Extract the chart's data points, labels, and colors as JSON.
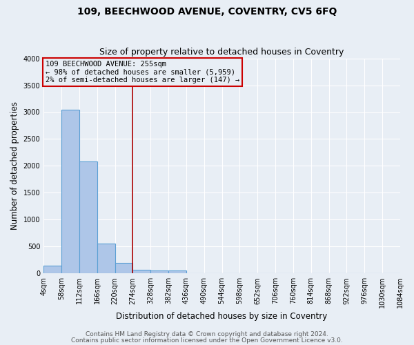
{
  "title": "109, BEECHWOOD AVENUE, COVENTRY, CV5 6FQ",
  "subtitle": "Size of property relative to detached houses in Coventry",
  "xlabel": "Distribution of detached houses by size in Coventry",
  "ylabel": "Number of detached properties",
  "bar_values": [
    150,
    3050,
    2080,
    550,
    200,
    70,
    50,
    50,
    0,
    0,
    0,
    0,
    0,
    0,
    0,
    0,
    0,
    0,
    0,
    0
  ],
  "bin_edges": [
    4,
    58,
    112,
    166,
    220,
    274,
    328,
    382,
    436,
    490,
    544,
    598,
    652,
    706,
    760,
    814,
    868,
    922,
    976,
    1030,
    1084
  ],
  "xtick_labels": [
    "4sqm",
    "58sqm",
    "112sqm",
    "166sqm",
    "220sqm",
    "274sqm",
    "328sqm",
    "382sqm",
    "436sqm",
    "490sqm",
    "544sqm",
    "598sqm",
    "652sqm",
    "706sqm",
    "760sqm",
    "814sqm",
    "868sqm",
    "922sqm",
    "976sqm",
    "1030sqm",
    "1084sqm"
  ],
  "bar_color": "#aec6e8",
  "bar_edgecolor": "#5a9fd4",
  "bar_linewidth": 0.8,
  "vline_x": 274,
  "vline_color": "#aa0000",
  "vline_linewidth": 1.2,
  "annotation_text": "109 BEECHWOOD AVENUE: 255sqm\n← 98% of detached houses are smaller (5,959)\n2% of semi-detached houses are larger (147) →",
  "annotation_box_color": "#cc0000",
  "ylim": [
    0,
    4000
  ],
  "yticks": [
    0,
    500,
    1000,
    1500,
    2000,
    2500,
    3000,
    3500,
    4000
  ],
  "bg_color": "#e8eef5",
  "footer_line1": "Contains HM Land Registry data © Crown copyright and database right 2024.",
  "footer_line2": "Contains public sector information licensed under the Open Government Licence v3.0.",
  "title_fontsize": 10,
  "subtitle_fontsize": 9,
  "axis_label_fontsize": 8.5,
  "tick_fontsize": 7,
  "annotation_fontsize": 7.5,
  "footer_fontsize": 6.5
}
